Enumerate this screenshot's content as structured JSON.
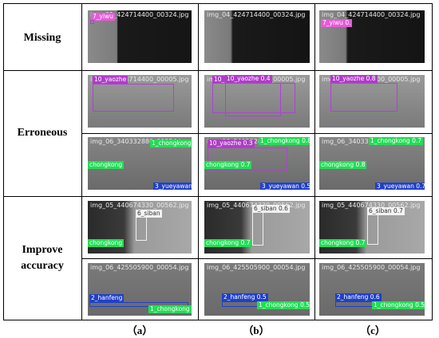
{
  "row_labels": [
    "Missing",
    "Erroneous",
    "Improve",
    "accuracy"
  ],
  "col_labels": [
    "（a）",
    "（b）",
    "（c）"
  ],
  "filenames": {
    "missing_a": "img_01_424714400_00324.jpg",
    "missing_b": "img_04_424714400_00324.jpg",
    "missing_c": "img_04_424714400_00324.jpg",
    "err1_a": "img_04_424714400_00005.jpg",
    "err1_b": "img_04_424714400_00005.jpg",
    "err1_c": "img_04_424714400_00005.jpg",
    "err2_a": "img_06_340332880_00324.jpg",
    "err2_b": "img_06_340332880_00324.jpg",
    "err2_c": "img_06_340332880_00324.jpg",
    "imp1_a": "img_05_440674330_00562.jpg",
    "imp1_b": "img_05_440674330_00562.jpg",
    "imp1_c": "img_05_440674330_00562.jpg",
    "imp2_a": "img_06_425505900_00054.jpg",
    "imp2_b": "img_06_425505900_00054.jpg",
    "imp2_c": "img_06_425505900_00054.jpg"
  },
  "labels": {
    "missing_a_tag": "7_yiwu",
    "missing_c_tag": "7_yiwu 0.",
    "err1_a_tag": "10_yaozhe",
    "err1_b_tag1": "10_yaozhe 0.4",
    "err1_b_tag2": "10_",
    "err1_c_tag": "10_yaozhe 0.8",
    "err2_a_green1": "1_chongkong",
    "err2_a_green2": "chongkong",
    "err2_a_blue": "3_yueyawan",
    "err2_b_purple": "10_yaozhe 0.3",
    "err2_b_green1": "1_chongkong 0.8",
    "err2_b_green2": "chongkong 0.7",
    "err2_b_blue": "3_yueyawan 0.5",
    "err2_c_green1": "1_chongkong 0.7",
    "err2_c_green2": "chongkong 0.8",
    "err2_c_blue": "3_yueyawan 0.7",
    "imp1_a_white": "6_siban",
    "imp1_a_green": "chongkong",
    "imp1_b_white": "6_siban 0.6",
    "imp1_b_green": "chongkong 0.7",
    "imp1_c_white": "6_siban 0.7",
    "imp1_c_green": "chongkong 0.7",
    "imp2_a_blue": "2_hanfeng",
    "imp2_a_green": "1_chongkong",
    "imp2_b_blue": "2_hanfeng 0.5",
    "imp2_b_green": "1_chongkong 0.5",
    "imp2_c_blue": "2_hanfeng 0.6",
    "imp2_c_green": "1_chongkong 0.5"
  }
}
